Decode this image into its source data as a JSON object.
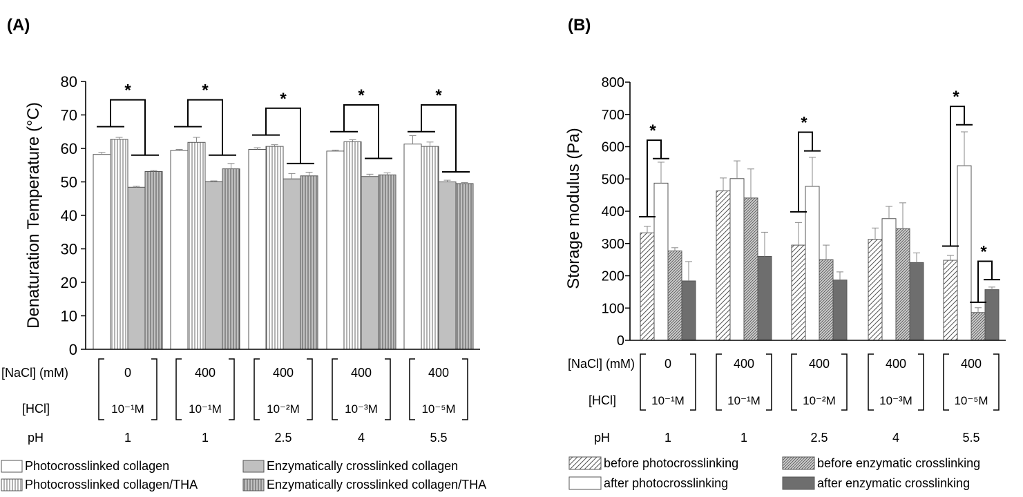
{
  "colors": {
    "axis": "#000000",
    "open_fill": "#ffffff",
    "gray_fill": "#c0c0c0",
    "dark_fill": "#6e6e6e",
    "line": "#555555",
    "error": "#888888"
  },
  "chart_data": [
    {
      "type": "bar",
      "panel_label": "(A)",
      "ylabel": "Denaturation Temperature (°C)",
      "ylim": [
        0,
        80
      ],
      "yticks": [
        "0",
        "10",
        "20",
        "30",
        "40",
        "50",
        "60",
        "70",
        "80"
      ],
      "grid": false,
      "legend_position": "bottom",
      "categories": [
        "1",
        "1",
        "2.5",
        "4",
        "5.5"
      ],
      "condition_rows": {
        "nacl_label": "[NaCl] (mM)",
        "hcl_label": "[HCl]",
        "ph_label": "pH",
        "nacl": [
          "0",
          "400",
          "400",
          "400",
          "400"
        ],
        "hcl": [
          "10⁻¹M",
          "10⁻¹M",
          "10⁻²M",
          "10⁻³M",
          "10⁻⁵M"
        ],
        "ph": [
          "1",
          "1",
          "2.5",
          "4",
          "5.5"
        ]
      },
      "series": [
        {
          "name": "Photocrosslinked collagen",
          "pattern": "open",
          "values": [
            58.2,
            59.4,
            59.7,
            59.2,
            61.3
          ],
          "errors": [
            0.6,
            0.3,
            0.5,
            0.3,
            2.5
          ]
        },
        {
          "name": "Photocrosslinked collagen/THA",
          "pattern": "vlines-open",
          "values": [
            62.7,
            61.8,
            60.6,
            62.0,
            60.6
          ],
          "errors": [
            0.6,
            1.5,
            0.5,
            0.6,
            1.3
          ]
        },
        {
          "name": "Enzymatically crosslinked collagen",
          "pattern": "gray",
          "values": [
            48.4,
            50.1,
            50.9,
            51.6,
            50.0
          ],
          "errors": [
            0.3,
            0.2,
            1.6,
            0.7,
            0.5
          ]
        },
        {
          "name": "Enzymatically crosslinked collagen/THA",
          "pattern": "vlines-gray",
          "values": [
            53.1,
            53.9,
            51.8,
            52.1,
            49.5
          ],
          "errors": [
            0.3,
            1.6,
            1.1,
            0.6,
            0.3
          ]
        }
      ],
      "significance": [
        {
          "group": 0,
          "left_y": 66.5,
          "right_y": 58.0,
          "top_y": 74.5,
          "label": "*"
        },
        {
          "group": 1,
          "left_y": 66.5,
          "right_y": 58.0,
          "top_y": 74.5,
          "label": "*"
        },
        {
          "group": 2,
          "left_y": 64.0,
          "right_y": 55.5,
          "top_y": 72.0,
          "label": "*"
        },
        {
          "group": 3,
          "left_y": 65.0,
          "right_y": 57.0,
          "top_y": 73.0,
          "label": "*"
        },
        {
          "group": 4,
          "left_y": 65.0,
          "right_y": 53.0,
          "top_y": 73.0,
          "label": "*"
        }
      ]
    },
    {
      "type": "bar",
      "panel_label": "(B)",
      "ylabel": "Storage modulus (Pa)",
      "ylim": [
        0,
        800
      ],
      "yticks": [
        "0",
        "100",
        "200",
        "300",
        "400",
        "500",
        "600",
        "700",
        "800"
      ],
      "grid": false,
      "legend_position": "bottom",
      "categories": [
        "1",
        "1",
        "2.5",
        "4",
        "5.5"
      ],
      "condition_rows": {
        "nacl_label": "[NaCl] (mM)",
        "hcl_label": "[HCl]",
        "ph_label": "pH",
        "nacl": [
          "0",
          "400",
          "400",
          "400",
          "400"
        ],
        "hcl": [
          "10⁻¹M",
          "10⁻¹M",
          "10⁻²M",
          "10⁻³M",
          "10⁻⁵M"
        ],
        "ph": [
          "1",
          "1",
          "2.5",
          "4",
          "5.5"
        ]
      },
      "series": [
        {
          "name": "before photocrosslinking",
          "pattern": "diag-open",
          "values": [
            333,
            463,
            295,
            313,
            248
          ],
          "errors": [
            20,
            40,
            70,
            35,
            15
          ]
        },
        {
          "name": "after photocrosslinking",
          "pattern": "open",
          "values": [
            487,
            501,
            477,
            377,
            541
          ],
          "errors": [
            65,
            55,
            90,
            38,
            105
          ]
        },
        {
          "name": "before enzymatic crosslinking",
          "pattern": "diag-gray",
          "values": [
            277,
            441,
            250,
            346,
            86
          ],
          "errors": [
            10,
            90,
            45,
            80,
            15
          ]
        },
        {
          "name": "after enzymatic crosslinking",
          "pattern": "dark",
          "values": [
            184,
            260,
            187,
            241,
            157
          ],
          "errors": [
            60,
            75,
            25,
            30,
            8
          ]
        }
      ],
      "significance": [
        {
          "group": 0,
          "bar_a": 0,
          "bar_b": 1,
          "left_y": 383,
          "right_y": 563,
          "top_y": 620,
          "label": "*"
        },
        {
          "group": 2,
          "bar_a": 0,
          "bar_b": 1,
          "left_y": 398,
          "right_y": 587,
          "top_y": 645,
          "label": "*"
        },
        {
          "group": 4,
          "bar_a": 0,
          "bar_b": 1,
          "left_y": 292,
          "right_y": 668,
          "top_y": 725,
          "label": "*"
        },
        {
          "group": 4,
          "bar_a": 2,
          "bar_b": 3,
          "left_y": 118,
          "right_y": 188,
          "top_y": 245,
          "label": "*"
        }
      ]
    }
  ]
}
